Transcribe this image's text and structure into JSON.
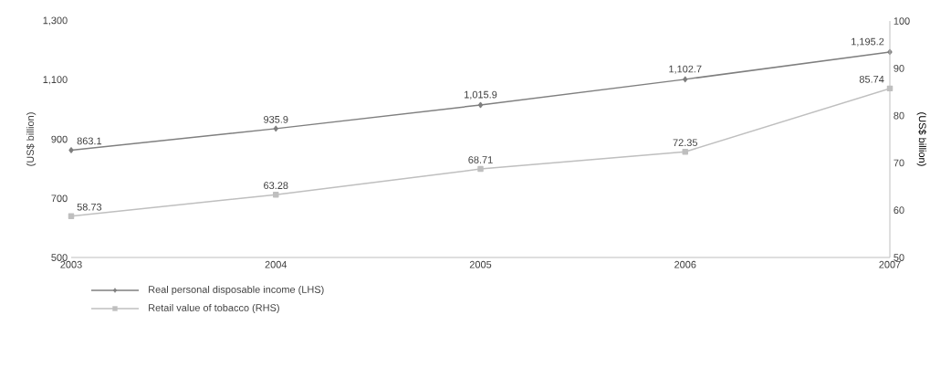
{
  "chart_data": {
    "type": "line",
    "ylabel": "(US$ billion)",
    "y2label": "(US$ billion)",
    "x": [
      2003,
      2004,
      2005,
      2006,
      2007
    ],
    "xlim": [
      2003,
      2007
    ],
    "xticks": [
      2003,
      2004,
      2005,
      2006,
      2007
    ],
    "ylim": [
      500,
      1300
    ],
    "yticks": [
      500,
      700,
      900,
      {
        "value": 1100,
        "label": "1,100"
      },
      {
        "value": 1300,
        "label": "1,300"
      }
    ],
    "y2lim": [
      50,
      100
    ],
    "y2ticks": [
      50,
      60,
      70,
      80,
      90,
      100
    ],
    "legend": "bottom left",
    "series": [
      {
        "name": "Real personal disposable income (LHS)",
        "color": "#7f7f7f",
        "marker": "diamond",
        "values": [
          863.1,
          935.9,
          1015.9,
          1102.7,
          1195.2
        ],
        "value_labels": [
          "863.1",
          "935.9",
          "1,015.9",
          "1,102.7",
          "1,195.2"
        ]
      },
      {
        "name": "Retail value of tobacco (RHS)",
        "color": "#bfbfbf",
        "marker": "square",
        "axis": "y2",
        "values": [
          58.73,
          63.28,
          68.71,
          72.35,
          85.74
        ],
        "value_labels": [
          "58.73",
          "63.28",
          "68.71",
          "72.35",
          "85.74"
        ]
      }
    ]
  }
}
